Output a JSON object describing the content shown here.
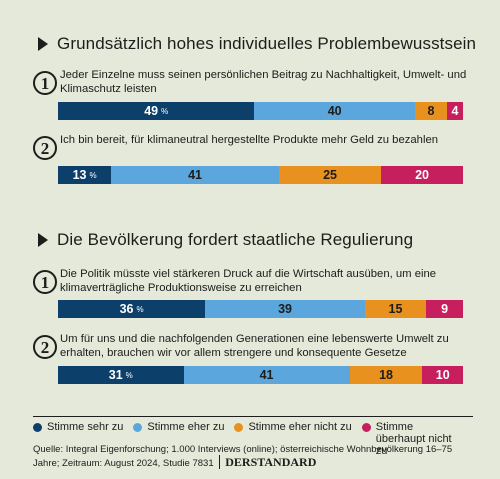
{
  "colors": {
    "sehr_zu": "#0d3f6b",
    "eher_zu": "#5ba6dc",
    "eher_nicht_zu": "#e8911e",
    "ueberhaupt_nicht_zu": "#c71f5d",
    "background": "#e4e9d9"
  },
  "sections": [
    {
      "title": "Grundsätzlich hohes individuelles Problembewusstsein"
    },
    {
      "title": "Die Bevölkerung fordert staatliche Regulierung"
    }
  ],
  "chart_data": {
    "type": "bar",
    "orientation": "horizontal-stacked-100",
    "unit": "%",
    "legend_placement": "bottom",
    "categories": [
      {
        "number": "1",
        "label": "Jeder Einzelne muss seinen persönlichen Beitrag zu Nachhaltigkeit, Umwelt- und Klimaschutz leisten"
      },
      {
        "number": "2",
        "label": "Ich bin bereit, für klimaneutral hergestellte Produkte mehr Geld zu bezahlen"
      },
      {
        "number": "1",
        "label": "Die Politik müsste viel stärkeren Druck auf die Wirtschaft ausüben, um eine klimaverträgliche Produktionsweise zu erreichen"
      },
      {
        "number": "2",
        "label": "Um für uns und die nachfolgenden Generationen eine lebenswerte Umwelt zu erhalten, brauchen wir vor allem strengere und konsequente Gesetze"
      }
    ],
    "series": [
      {
        "name": "Stimme sehr zu",
        "values": [
          49,
          13,
          36,
          31
        ]
      },
      {
        "name": "Stimme eher zu",
        "values": [
          40,
          41,
          39,
          41
        ]
      },
      {
        "name": "Stimme eher nicht zu",
        "values": [
          8,
          25,
          15,
          18
        ]
      },
      {
        "name": "Stimme überhaupt nicht zu",
        "values": [
          4,
          20,
          9,
          10
        ]
      }
    ],
    "pct_symbol": "%"
  },
  "source": {
    "text": "Quelle: Integral Eigenforschung; 1.000 Interviews (online); österreichische Wohnbevölkerung 16–75 Jahre; Zeitraum: August 2024, Studie 7831",
    "brand": "DERSTANDARD"
  }
}
